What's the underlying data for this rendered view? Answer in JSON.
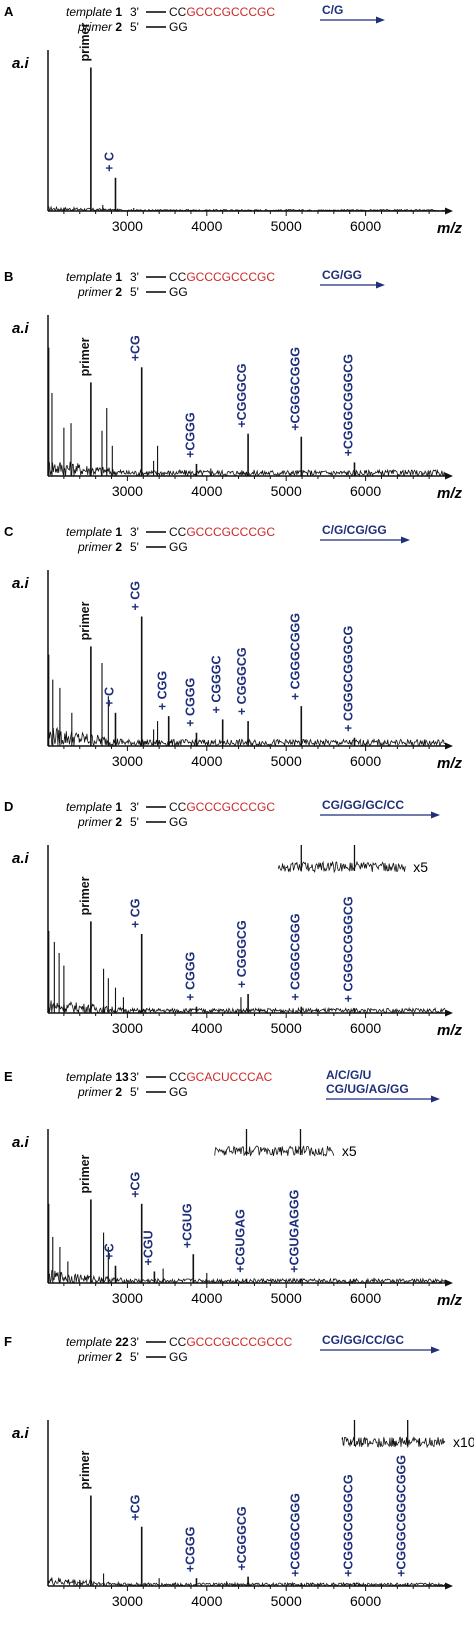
{
  "colors": {
    "axis": "#111111",
    "spectrum": "#111111",
    "peak_label": "#1f2f7a",
    "primer_label": "#111111",
    "arrow_text": "#1f2f7a",
    "template_red": "#cc2a2a",
    "template_black": "#111111"
  },
  "chart_data": [
    {
      "type": "line",
      "panel": "A",
      "template_label": "template",
      "template_num": "1",
      "primer_label": "primer",
      "primer_num": "2",
      "strand3": "3'",
      "strand5": "5'",
      "template_prefix": "CC",
      "template_seq": "GCCCGCCCGC",
      "primer_seq": "GG",
      "arrow_lines": [
        "C/G"
      ],
      "ylabel": "a.i",
      "xlabel": "m/z",
      "xlim": [
        2000,
        7000
      ],
      "x_ticks": [
        "3000",
        "4000",
        "5000",
        "6000"
      ],
      "x_tick_values": [
        3000,
        4000,
        5000,
        6000
      ],
      "noise": 0.01,
      "inset": null,
      "peaks": [
        {
          "x": 2540,
          "y": 0.95,
          "label": "primer",
          "primer": true
        },
        {
          "x": 2850,
          "y": 0.22,
          "label": "+ C"
        }
      ],
      "minor": [
        [
          2200,
          0.02
        ],
        [
          2690,
          0.04
        ],
        [
          3080,
          0.02
        ]
      ]
    },
    {
      "type": "line",
      "panel": "B",
      "template_label": "template",
      "template_num": "1",
      "primer_label": "primer",
      "primer_num": "2",
      "strand3": "3'",
      "strand5": "5'",
      "template_prefix": "CC",
      "template_seq": "GCCCGCCCGC",
      "primer_seq": "GG",
      "arrow_lines": [
        "CG/GG"
      ],
      "ylabel": "a.i",
      "xlabel": "m/z",
      "xlim": [
        2000,
        7000
      ],
      "x_ticks": [
        "3000",
        "4000",
        "5000",
        "6000"
      ],
      "x_tick_values": [
        3000,
        4000,
        5000,
        6000
      ],
      "noise": 0.04,
      "inset": null,
      "peaks": [
        {
          "x": 2540,
          "y": 0.62,
          "label": "primer",
          "primer": true
        },
        {
          "x": 3180,
          "y": 0.72,
          "label": "+CG"
        },
        {
          "x": 3870,
          "y": 0.08,
          "label": "+CGGG"
        },
        {
          "x": 4520,
          "y": 0.28,
          "label": "+CGGGCG"
        },
        {
          "x": 5190,
          "y": 0.26,
          "label": "+CGGGCGGG"
        },
        {
          "x": 5860,
          "y": 0.09,
          "label": "+CGGGCGGGCG"
        }
      ],
      "minor": [
        [
          2010,
          0.85
        ],
        [
          2050,
          0.55
        ],
        [
          2200,
          0.32
        ],
        [
          2290,
          0.35
        ],
        [
          2680,
          0.3
        ],
        [
          2740,
          0.45
        ],
        [
          2810,
          0.2
        ],
        [
          3380,
          0.2
        ],
        [
          3330,
          0.1
        ],
        [
          4050,
          0.05
        ]
      ]
    },
    {
      "type": "line",
      "panel": "C",
      "template_label": "template",
      "template_num": "1",
      "primer_label": "primer",
      "primer_num": "2",
      "strand3": "3'",
      "strand5": "5'",
      "template_prefix": "CC",
      "template_seq": "GCCCGCCCGC",
      "primer_seq": "GG",
      "arrow_lines": [
        "C/G/CG/GG"
      ],
      "ylabel": "a.i",
      "xlabel": "m/z",
      "xlim": [
        2000,
        7000
      ],
      "x_ticks": [
        "3000",
        "4000",
        "5000",
        "6000"
      ],
      "x_tick_values": [
        3000,
        4000,
        5000,
        6000
      ],
      "noise": 0.04,
      "inset": null,
      "peaks": [
        {
          "x": 2540,
          "y": 0.6,
          "label": "primer",
          "primer": true
        },
        {
          "x": 2850,
          "y": 0.2,
          "label": "+ C"
        },
        {
          "x": 3180,
          "y": 0.78,
          "label": "+ CG"
        },
        {
          "x": 3520,
          "y": 0.18,
          "label": "+ CGG"
        },
        {
          "x": 3870,
          "y": 0.08,
          "label": "+ CGGG"
        },
        {
          "x": 4200,
          "y": 0.16,
          "label": "+ CGGGC"
        },
        {
          "x": 4520,
          "y": 0.15,
          "label": "+ CGGGCG"
        },
        {
          "x": 5190,
          "y": 0.24,
          "label": "+ CGGGCGGG"
        },
        {
          "x": 5860,
          "y": 0.05,
          "label": "+ CGGGCGGGCG"
        }
      ],
      "minor": [
        [
          2010,
          0.55
        ],
        [
          2060,
          0.4
        ],
        [
          2150,
          0.35
        ],
        [
          2300,
          0.2
        ],
        [
          2680,
          0.5
        ],
        [
          2760,
          0.3
        ],
        [
          3380,
          0.15
        ],
        [
          3330,
          0.1
        ]
      ]
    },
    {
      "type": "line",
      "panel": "D",
      "template_label": "template",
      "template_num": "1",
      "primer_label": "primer",
      "primer_num": "2",
      "strand3": "3'",
      "strand5": "5'",
      "template_prefix": "CC",
      "template_seq": "GCCCGCCCGC",
      "primer_seq": "GG",
      "arrow_lines": [
        "CG/GG/GC/CC"
      ],
      "ylabel": "a.i",
      "xlabel": "m/z",
      "xlim": [
        2000,
        7000
      ],
      "x_ticks": [
        "3000",
        "4000",
        "5000",
        "6000"
      ],
      "x_tick_values": [
        3000,
        4000,
        5000,
        6000
      ],
      "noise": 0.03,
      "inset": {
        "label": "x5",
        "x_range": [
          4900,
          6500
        ],
        "spikes": [
          5190,
          5860
        ]
      },
      "peaks": [
        {
          "x": 2540,
          "y": 0.58,
          "label": "primer",
          "primer": true
        },
        {
          "x": 3180,
          "y": 0.5,
          "label": "+ CG"
        },
        {
          "x": 3870,
          "y": 0.04,
          "label": "+ CGGG"
        },
        {
          "x": 4520,
          "y": 0.12,
          "label": "+ CGGGCG"
        },
        {
          "x": 5190,
          "y": 0.04,
          "label": "+ CGGGCGGG"
        },
        {
          "x": 5860,
          "y": 0.03,
          "label": "+ CGGGCGGGCG"
        }
      ],
      "minor": [
        [
          2010,
          0.52
        ],
        [
          2080,
          0.45
        ],
        [
          2140,
          0.38
        ],
        [
          2200,
          0.3
        ],
        [
          2700,
          0.28
        ],
        [
          2760,
          0.22
        ],
        [
          2850,
          0.16
        ],
        [
          2950,
          0.1
        ],
        [
          4430,
          0.1
        ]
      ]
    },
    {
      "type": "line",
      "panel": "E",
      "template_label": "template",
      "template_num": "13",
      "primer_label": "primer",
      "primer_num": "2",
      "strand3": "3'",
      "strand5": "5'",
      "template_prefix": "CC",
      "template_seq": "GCACUCCCAC",
      "primer_seq": "GG",
      "arrow_lines": [
        "A/C/G/U",
        "CG/UG/AG/GG"
      ],
      "ylabel": "a.i",
      "xlabel": "m/z",
      "xlim": [
        2000,
        7000
      ],
      "x_ticks": [
        "3000",
        "4000",
        "5000",
        "6000"
      ],
      "x_tick_values": [
        3000,
        4000,
        5000,
        6000
      ],
      "noise": 0.03,
      "inset": {
        "label": "x5",
        "x_range": [
          4100,
          5600
        ],
        "spikes": [
          4500,
          5180
        ]
      },
      "peaks": [
        {
          "x": 2540,
          "y": 0.58,
          "label": "primer",
          "primer": true
        },
        {
          "x": 2850,
          "y": 0.12,
          "label": "+C"
        },
        {
          "x": 3180,
          "y": 0.55,
          "label": "+CG"
        },
        {
          "x": 3340,
          "y": 0.08,
          "label": "+CGU"
        },
        {
          "x": 3830,
          "y": 0.2,
          "label": "+CGUG"
        },
        {
          "x": 4500,
          "y": 0.03,
          "label": "+CGUGAG"
        },
        {
          "x": 5180,
          "y": 0.03,
          "label": "+CGUGAGGG"
        }
      ],
      "minor": [
        [
          2010,
          0.55
        ],
        [
          2060,
          0.32
        ],
        [
          2150,
          0.25
        ],
        [
          2250,
          0.15
        ],
        [
          2700,
          0.35
        ],
        [
          2760,
          0.25
        ],
        [
          3450,
          0.1
        ],
        [
          4000,
          0.07
        ]
      ]
    },
    {
      "type": "line",
      "panel": "F",
      "template_label": "template",
      "template_num": "22",
      "primer_label": "primer",
      "primer_num": "2",
      "strand3": "3'",
      "strand5": "5'",
      "template_prefix": "CC",
      "template_seq": "GCCCGCCCGCCC",
      "primer_seq": "GG",
      "arrow_lines": [
        "CG/GG/CC/GC"
      ],
      "ylabel": "a.i",
      "xlabel": "",
      "xlim": [
        2000,
        7000
      ],
      "x_ticks": [
        "3000",
        "4000",
        "5000",
        "6000"
      ],
      "x_tick_values": [
        3000,
        4000,
        5000,
        6000
      ],
      "noise": 0.02,
      "inset": {
        "label": "x10",
        "x_range": [
          5700,
          7000
        ],
        "spikes": [
          5860,
          6530
        ]
      },
      "peaks": [
        {
          "x": 2540,
          "y": 0.58,
          "label": "primer",
          "primer": true
        },
        {
          "x": 3180,
          "y": 0.38,
          "label": "+CG"
        },
        {
          "x": 3870,
          "y": 0.05,
          "label": "+CGGG"
        },
        {
          "x": 4520,
          "y": 0.06,
          "label": "+CGGGCG"
        },
        {
          "x": 5190,
          "y": 0.02,
          "label": "+CGGGCGGG"
        },
        {
          "x": 5860,
          "y": 0.02,
          "label": "+CGGGCGGGCG"
        },
        {
          "x": 6530,
          "y": 0.02,
          "label": "+CGGGCGGGCGGG"
        }
      ],
      "minor": [
        [
          2700,
          0.08
        ],
        [
          2400,
          0.04
        ],
        [
          3400,
          0.05
        ],
        [
          4250,
          0.03
        ]
      ]
    }
  ]
}
